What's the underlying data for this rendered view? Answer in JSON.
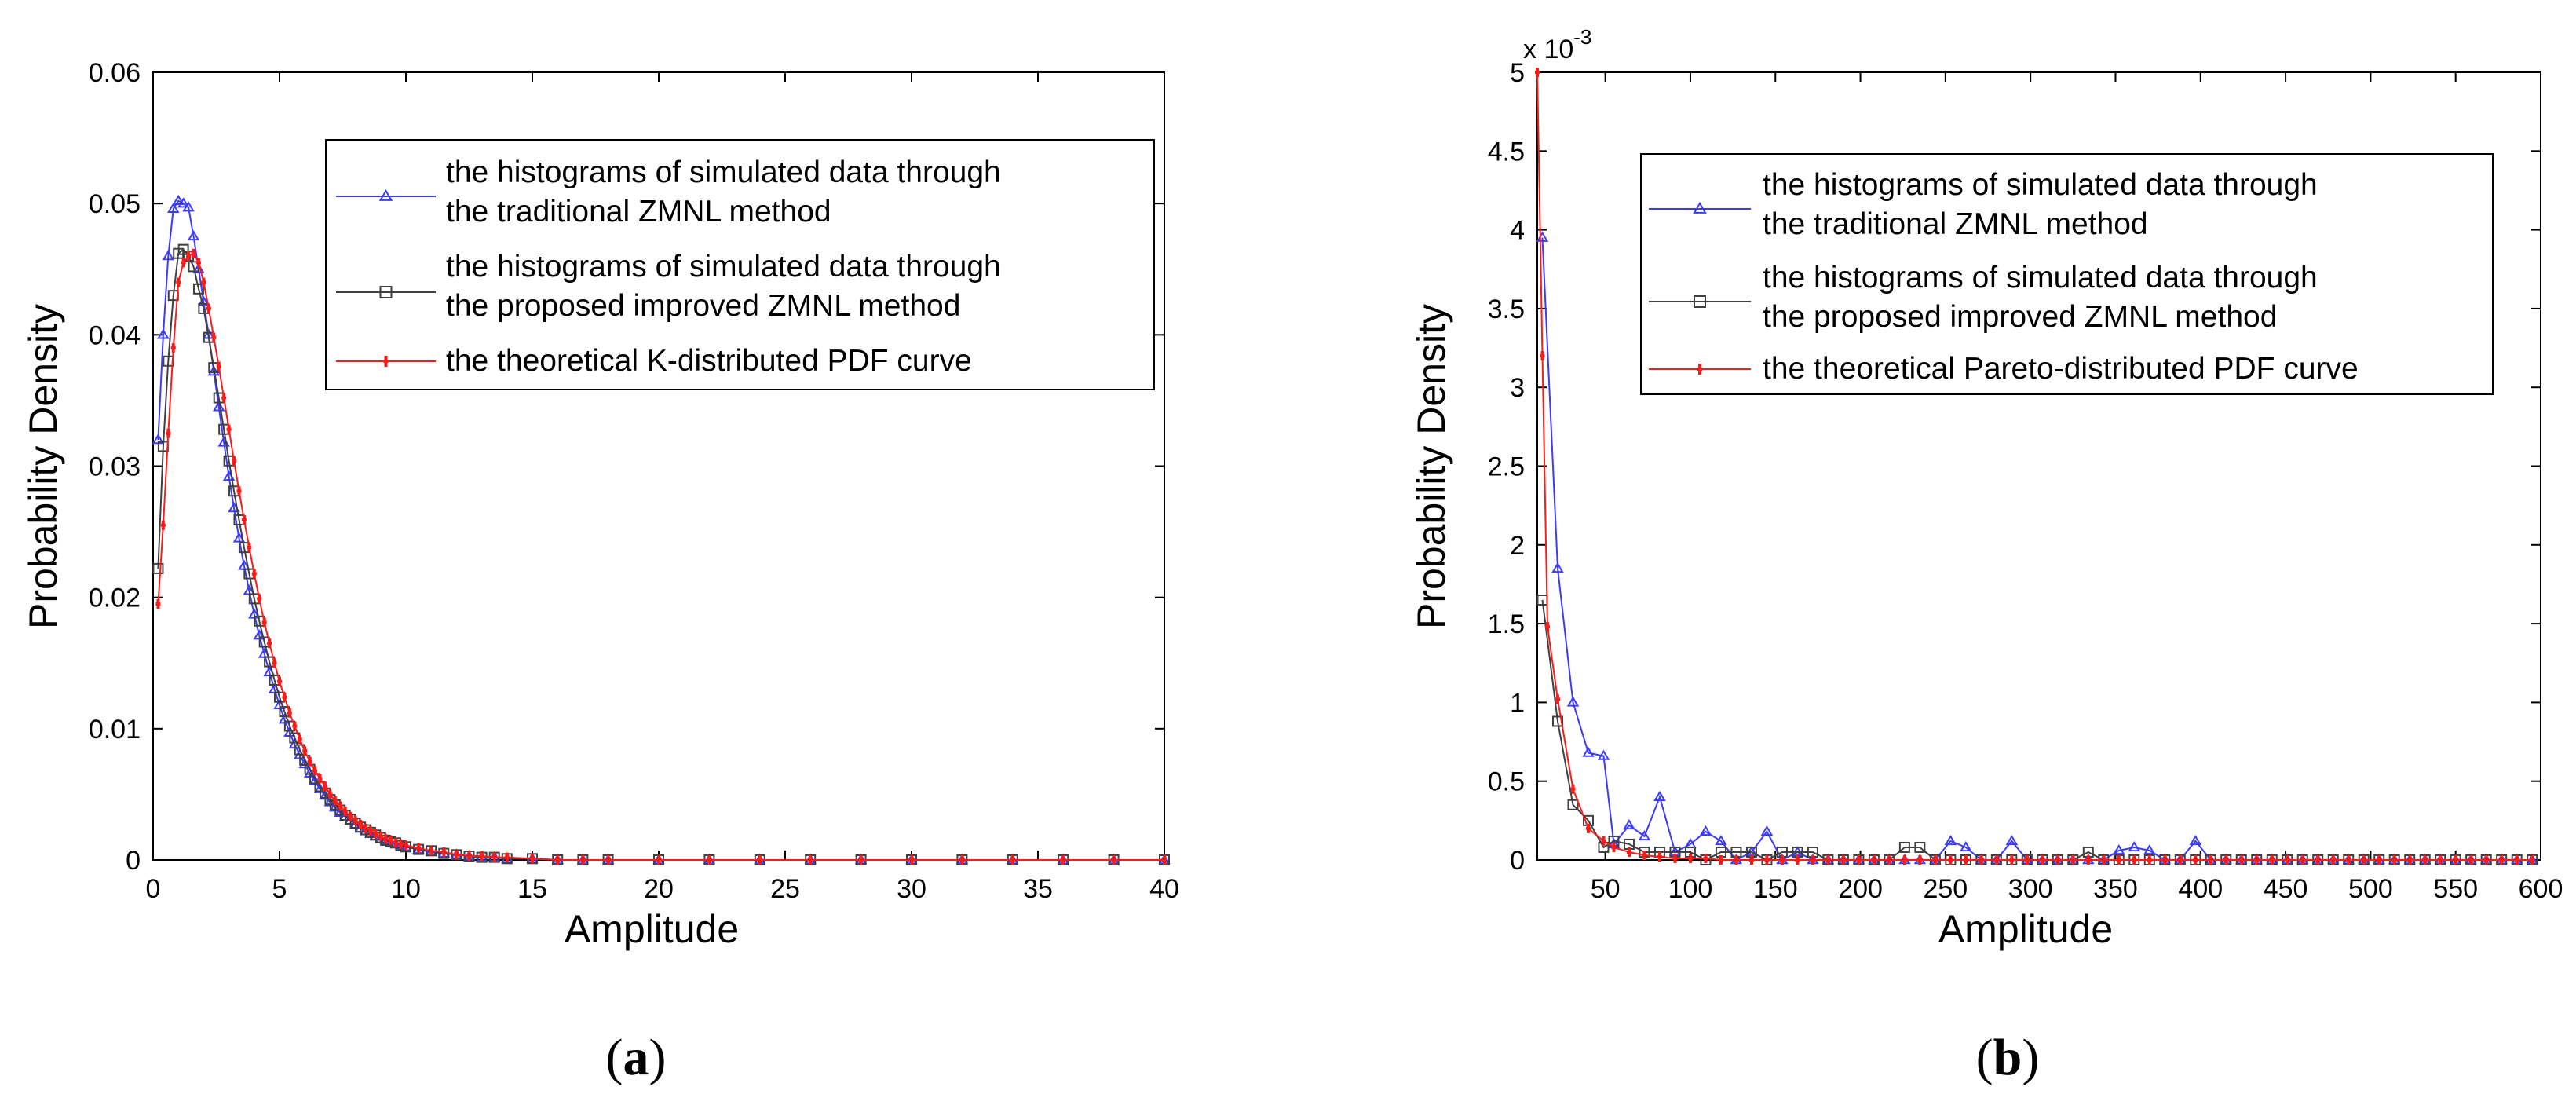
{
  "chart_data": [
    {
      "id": "a",
      "type": "line",
      "panel_label": {
        "open": "(",
        "letter": "a",
        "close": ")"
      },
      "xlabel": "Amplitude",
      "ylabel": "Probability Density",
      "xlim": [
        0,
        40
      ],
      "ylim": [
        0,
        0.06
      ],
      "xticks": [
        0,
        5,
        10,
        15,
        20,
        25,
        30,
        35,
        40
      ],
      "yticks": [
        0,
        0.01,
        0.02,
        0.03,
        0.04,
        0.05,
        0.06
      ],
      "xtick_labels": [
        "0",
        "5",
        "10",
        "15",
        "20",
        "25",
        "30",
        "35",
        "40"
      ],
      "ytick_labels": [
        "0",
        "0.01",
        "0.02",
        "0.03",
        "0.04",
        "0.05",
        "0.06"
      ],
      "legend_position": "top-right",
      "series": [
        {
          "name": "traditional",
          "legend": [
            "the histograms of simulated data through",
            "the traditional ZMNL method"
          ],
          "color": "#3b3bff",
          "marker": "triangle",
          "x": [
            0.2,
            0.4,
            0.6,
            0.8,
            1.0,
            1.2,
            1.4,
            1.6,
            1.8,
            2.0,
            2.2,
            2.4,
            2.6,
            2.8,
            3.0,
            3.2,
            3.4,
            3.6,
            3.8,
            4.0,
            4.2,
            4.4,
            4.6,
            4.8,
            5.0,
            5.2,
            5.4,
            5.6,
            5.8,
            6.0,
            6.2,
            6.4,
            6.6,
            6.8,
            7.0,
            7.2,
            7.4,
            7.6,
            7.8,
            8.0,
            8.2,
            8.4,
            8.6,
            8.8,
            9.0,
            9.2,
            9.4,
            9.6,
            9.8,
            10.0,
            10.5,
            11.0,
            11.5,
            12.0,
            12.5,
            13.0,
            13.5,
            14.0,
            15.0,
            16.0,
            17.0,
            18.0,
            20.0,
            22.0,
            24.0,
            26.0,
            28.0,
            30.0,
            32.0,
            34.0,
            36.0,
            38.0,
            40.0
          ],
          "y": [
            0.032,
            0.04,
            0.046,
            0.0496,
            0.0502,
            0.05,
            0.0497,
            0.0475,
            0.045,
            0.0425,
            0.04,
            0.0372,
            0.0345,
            0.0318,
            0.0292,
            0.0268,
            0.0245,
            0.0224,
            0.0205,
            0.0187,
            0.0171,
            0.0157,
            0.0143,
            0.013,
            0.0118,
            0.0107,
            0.0097,
            0.0088,
            0.008,
            0.0073,
            0.0066,
            0.006,
            0.0054,
            0.0049,
            0.0044,
            0.004,
            0.0036,
            0.0033,
            0.003,
            0.0027,
            0.0024,
            0.0022,
            0.002,
            0.0018,
            0.0016,
            0.0015,
            0.0013,
            0.0012,
            0.0011,
            0.001,
            0.0008,
            0.0006,
            0.0005,
            0.0004,
            0.0003,
            0.0002,
            0.0002,
            0.0001,
            0.0001,
            0.0,
            0.0,
            0.0,
            0.0,
            0.0,
            0.0,
            0.0,
            0.0,
            0.0,
            0.0,
            0.0,
            0.0,
            0.0,
            0.0
          ]
        },
        {
          "name": "improved",
          "legend": [
            "the histograms of simulated data through",
            "the proposed improved ZMNL method"
          ],
          "color": "#404040",
          "marker": "square",
          "x": [
            0.2,
            0.4,
            0.6,
            0.8,
            1.0,
            1.2,
            1.4,
            1.6,
            1.8,
            2.0,
            2.2,
            2.4,
            2.6,
            2.8,
            3.0,
            3.2,
            3.4,
            3.6,
            3.8,
            4.0,
            4.2,
            4.4,
            4.6,
            4.8,
            5.0,
            5.2,
            5.4,
            5.6,
            5.8,
            6.0,
            6.2,
            6.4,
            6.6,
            6.8,
            7.0,
            7.2,
            7.4,
            7.6,
            7.8,
            8.0,
            8.2,
            8.4,
            8.6,
            8.8,
            9.0,
            9.2,
            9.4,
            9.6,
            9.8,
            10.0,
            10.5,
            11.0,
            11.5,
            12.0,
            12.5,
            13.0,
            13.5,
            14.0,
            15.0,
            16.0,
            17.0,
            18.0,
            20.0,
            22.0,
            24.0,
            26.0,
            28.0,
            30.0,
            32.0,
            34.0,
            36.0,
            38.0,
            40.0
          ],
          "y": [
            0.0222,
            0.0315,
            0.038,
            0.043,
            0.0462,
            0.0465,
            0.046,
            0.0452,
            0.0435,
            0.042,
            0.0398,
            0.0375,
            0.0352,
            0.0328,
            0.0304,
            0.0281,
            0.0259,
            0.0238,
            0.0218,
            0.0199,
            0.0182,
            0.0166,
            0.0151,
            0.0137,
            0.0124,
            0.0113,
            0.0102,
            0.0093,
            0.0084,
            0.0076,
            0.0069,
            0.0062,
            0.0056,
            0.0051,
            0.0046,
            0.0042,
            0.0038,
            0.0034,
            0.0031,
            0.0028,
            0.0025,
            0.0023,
            0.0021,
            0.0019,
            0.0017,
            0.0015,
            0.0014,
            0.0013,
            0.0011,
            0.001,
            0.0008,
            0.0007,
            0.0005,
            0.0004,
            0.0003,
            0.0002,
            0.0002,
            0.0001,
            0.0001,
            0.0,
            0.0,
            0.0,
            0.0,
            0.0,
            0.0,
            0.0,
            0.0,
            0.0,
            0.0,
            0.0,
            0.0,
            0.0,
            0.0
          ]
        },
        {
          "name": "theoretical",
          "legend": [
            "the theoretical K-distributed PDF curve"
          ],
          "color": "#ff1a1a",
          "marker": "plus",
          "x": [
            0.2,
            0.4,
            0.6,
            0.8,
            1.0,
            1.2,
            1.4,
            1.6,
            1.8,
            2.0,
            2.2,
            2.4,
            2.6,
            2.8,
            3.0,
            3.2,
            3.4,
            3.6,
            3.8,
            4.0,
            4.2,
            4.4,
            4.6,
            4.8,
            5.0,
            5.2,
            5.4,
            5.6,
            5.8,
            6.0,
            6.2,
            6.4,
            6.6,
            6.8,
            7.0,
            7.2,
            7.4,
            7.6,
            7.8,
            8.0,
            8.2,
            8.4,
            8.6,
            8.8,
            9.0,
            9.2,
            9.4,
            9.6,
            9.8,
            10.0,
            10.5,
            11.0,
            11.5,
            12.0,
            12.5,
            13.0,
            13.5,
            14.0,
            15.0,
            16.0,
            17.0,
            18.0,
            20.0,
            22.0,
            24.0,
            26.0,
            28.0,
            30.0,
            32.0,
            34.0,
            36.0,
            38.0,
            40.0
          ],
          "y": [
            0.0195,
            0.0255,
            0.0325,
            0.039,
            0.044,
            0.0455,
            0.046,
            0.0462,
            0.0455,
            0.044,
            0.042,
            0.0398,
            0.0376,
            0.0352,
            0.0328,
            0.0304,
            0.0281,
            0.0259,
            0.0238,
            0.0218,
            0.0199,
            0.0181,
            0.0165,
            0.015,
            0.0136,
            0.0124,
            0.0112,
            0.0102,
            0.0092,
            0.0083,
            0.0075,
            0.0068,
            0.0062,
            0.0056,
            0.005,
            0.0045,
            0.0041,
            0.0037,
            0.0033,
            0.003,
            0.0027,
            0.0024,
            0.0022,
            0.002,
            0.0018,
            0.0016,
            0.0015,
            0.0013,
            0.0012,
            0.0011,
            0.0009,
            0.0007,
            0.0006,
            0.0004,
            0.0003,
            0.0003,
            0.0002,
            0.0002,
            0.0001,
            0.0,
            0.0,
            0.0,
            0.0,
            0.0,
            0.0,
            0.0,
            0.0,
            0.0,
            0.0,
            0.0,
            0.0,
            0.0,
            0.0
          ]
        }
      ]
    },
    {
      "id": "b",
      "type": "line",
      "panel_label": {
        "open": "(",
        "letter": "b",
        "close": ")"
      },
      "xlabel": "Amplitude",
      "ylabel": "Probability Density",
      "y_scale_label": {
        "base": "x 10",
        "exp": "-3"
      },
      "xlim": [
        10,
        600
      ],
      "ylim": [
        0,
        5
      ],
      "xticks": [
        50,
        100,
        150,
        200,
        250,
        300,
        350,
        400,
        450,
        500,
        550,
        600
      ],
      "yticks": [
        0,
        0.5,
        1,
        1.5,
        2,
        2.5,
        3,
        3.5,
        4,
        4.5,
        5
      ],
      "xtick_labels": [
        "50",
        "100",
        "150",
        "200",
        "250",
        "300",
        "350",
        "400",
        "450",
        "500",
        "550",
        "600"
      ],
      "ytick_labels": [
        "0",
        "0.5",
        "1",
        "1.5",
        "2",
        "2.5",
        "3",
        "3.5",
        "4",
        "4.5",
        "5"
      ],
      "legend_position": "top-right",
      "series": [
        {
          "name": "traditional",
          "legend": [
            "the histograms of simulated data through",
            "the traditional ZMNL method"
          ],
          "color": "#3b3bff",
          "marker": "triangle",
          "x": [
            13,
            22,
            31,
            40,
            49,
            55,
            64,
            73,
            82,
            91,
            100,
            109,
            118,
            127,
            136,
            145,
            154,
            163,
            172,
            181,
            190,
            199,
            208,
            217,
            226,
            235,
            244,
            253,
            262,
            271,
            280,
            289,
            298,
            307,
            316,
            325,
            334,
            343,
            352,
            361,
            370,
            379,
            388,
            397,
            406,
            415,
            424,
            433,
            442,
            451,
            460,
            469,
            478,
            487,
            496,
            505,
            514,
            523,
            532,
            541,
            550,
            559,
            568,
            577,
            586,
            595
          ],
          "y": [
            3.95,
            1.85,
            1.0,
            0.68,
            0.66,
            0.1,
            0.22,
            0.15,
            0.4,
            0.05,
            0.1,
            0.18,
            0.12,
            0.0,
            0.05,
            0.18,
            0.0,
            0.05,
            0.0,
            0.0,
            0.0,
            0.0,
            0.0,
            0.0,
            0.0,
            0.0,
            0.0,
            0.12,
            0.08,
            0.0,
            0.0,
            0.12,
            0.0,
            0.0,
            0.0,
            0.0,
            0.0,
            0.0,
            0.06,
            0.08,
            0.06,
            0.0,
            0.0,
            0.12,
            0.0,
            0.0,
            0.0,
            0.0,
            0.0,
            0.0,
            0.0,
            0.0,
            0.0,
            0.0,
            0.0,
            0.0,
            0.0,
            0.0,
            0.0,
            0.0,
            0.0,
            0.0,
            0.0,
            0.0,
            0.0,
            0.0
          ]
        },
        {
          "name": "improved",
          "legend": [
            "the histograms of simulated data through",
            "the proposed improved ZMNL method"
          ],
          "color": "#404040",
          "marker": "square",
          "x": [
            13,
            22,
            31,
            40,
            49,
            55,
            64,
            73,
            82,
            91,
            100,
            109,
            118,
            127,
            136,
            145,
            154,
            163,
            172,
            181,
            190,
            199,
            208,
            217,
            226,
            235,
            244,
            253,
            262,
            271,
            280,
            289,
            298,
            307,
            316,
            325,
            334,
            343,
            352,
            361,
            370,
            379,
            388,
            397,
            406,
            415,
            424,
            433,
            442,
            451,
            460,
            469,
            478,
            487,
            496,
            505,
            514,
            523,
            532,
            541,
            550,
            559,
            568,
            577,
            586,
            595
          ],
          "y": [
            1.65,
            0.88,
            0.35,
            0.25,
            0.08,
            0.12,
            0.1,
            0.05,
            0.05,
            0.05,
            0.05,
            0.0,
            0.05,
            0.05,
            0.05,
            0.0,
            0.05,
            0.05,
            0.05,
            0.0,
            0.0,
            0.0,
            0.0,
            0.0,
            0.08,
            0.08,
            0.0,
            0.0,
            0.0,
            0.0,
            0.0,
            0.0,
            0.0,
            0.0,
            0.0,
            0.0,
            0.05,
            0.0,
            0.0,
            0.0,
            0.0,
            0.0,
            0.0,
            0.0,
            0.0,
            0.0,
            0.0,
            0.0,
            0.0,
            0.0,
            0.0,
            0.0,
            0.0,
            0.0,
            0.0,
            0.0,
            0.0,
            0.0,
            0.0,
            0.0,
            0.0,
            0.0,
            0.0,
            0.0,
            0.0,
            0.0
          ]
        },
        {
          "name": "theoretical",
          "legend": [
            "the theoretical Pareto-distributed PDF curve"
          ],
          "color": "#ff1a1a",
          "marker": "plus",
          "x": [
            10,
            13,
            16,
            22,
            31,
            40,
            49,
            55,
            64,
            73,
            82,
            91,
            100,
            109,
            118,
            127,
            136,
            145,
            154,
            163,
            172,
            181,
            190,
            199,
            208,
            217,
            226,
            235,
            244,
            253,
            262,
            271,
            280,
            289,
            298,
            307,
            316,
            325,
            334,
            343,
            352,
            361,
            370,
            379,
            388,
            397,
            406,
            415,
            424,
            433,
            442,
            451,
            460,
            469,
            478,
            487,
            496,
            505,
            514,
            523,
            532,
            541,
            550,
            559,
            568,
            577,
            586,
            595
          ],
          "y": [
            5.0,
            3.2,
            1.48,
            1.02,
            0.45,
            0.2,
            0.12,
            0.08,
            0.05,
            0.03,
            0.02,
            0.01,
            0.01,
            0.01,
            0.0,
            0.0,
            0.0,
            0.0,
            0.0,
            0.0,
            0.0,
            0.0,
            0.0,
            0.0,
            0.0,
            0.0,
            0.0,
            0.0,
            0.0,
            0.0,
            0.0,
            0.0,
            0.0,
            0.0,
            0.0,
            0.0,
            0.0,
            0.0,
            0.0,
            0.0,
            0.0,
            0.0,
            0.0,
            0.0,
            0.0,
            0.0,
            0.0,
            0.0,
            0.0,
            0.0,
            0.0,
            0.0,
            0.0,
            0.0,
            0.0,
            0.0,
            0.0,
            0.0,
            0.0,
            0.0,
            0.0,
            0.0,
            0.0,
            0.0,
            0.0,
            0.0,
            0.0,
            0.0
          ]
        }
      ]
    }
  ]
}
